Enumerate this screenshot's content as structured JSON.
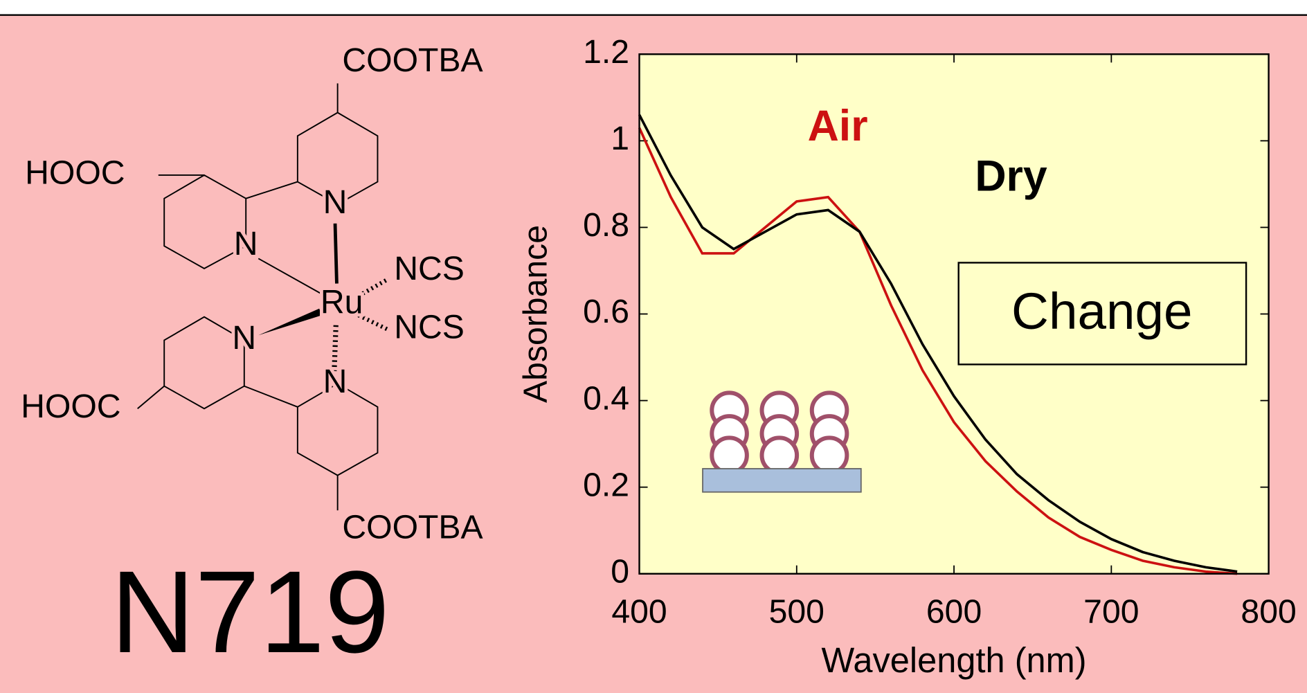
{
  "compound_name": "N719",
  "structure": {
    "labels": [
      "COOTBA",
      "HOOC",
      "N",
      "N",
      "NCS",
      "Ru",
      "NCS",
      "N",
      "HOOC",
      "N",
      "COOTBA"
    ]
  },
  "chart_data": {
    "type": "line",
    "xlabel": "Wavelength (nm)",
    "ylabel": "Absorbance",
    "annotation": "Change",
    "x": [
      400,
      420,
      440,
      460,
      480,
      500,
      520,
      540,
      560,
      580,
      600,
      620,
      640,
      660,
      680,
      700,
      720,
      740,
      760,
      780
    ],
    "series": [
      {
        "name": "Air",
        "color": "#cc1111",
        "values": [
          1.03,
          0.87,
          0.74,
          0.74,
          0.8,
          0.86,
          0.87,
          0.79,
          0.62,
          0.47,
          0.35,
          0.26,
          0.19,
          0.13,
          0.085,
          0.055,
          0.03,
          0.015,
          0.005,
          0
        ]
      },
      {
        "name": "Dry",
        "color": "#000000",
        "values": [
          1.06,
          0.92,
          0.8,
          0.75,
          0.79,
          0.83,
          0.84,
          0.79,
          0.67,
          0.53,
          0.41,
          0.31,
          0.23,
          0.17,
          0.12,
          0.08,
          0.05,
          0.03,
          0.015,
          0.005
        ]
      }
    ],
    "xlim": [
      400,
      800
    ],
    "ylim": [
      0,
      1.2
    ],
    "xticks": [
      400,
      500,
      600,
      700,
      800
    ],
    "yticks": [
      0,
      0.2,
      0.4,
      0.6,
      0.8,
      1,
      1.2
    ],
    "grid": false
  }
}
